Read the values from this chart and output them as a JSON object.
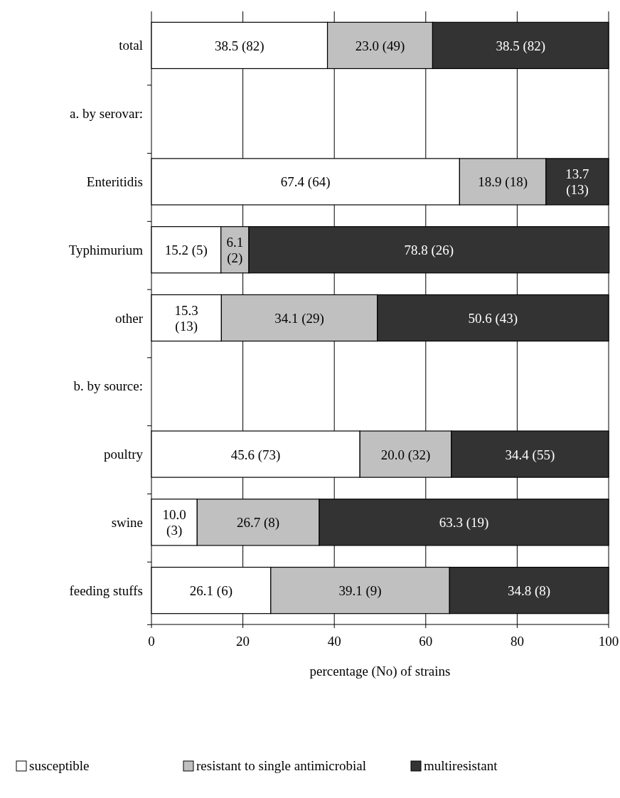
{
  "chart_data": {
    "type": "bar",
    "orientation": "horizontal",
    "stacked": true,
    "xlabel": "percentage (No) of strains",
    "categories": [
      "total",
      null,
      "Enteritidis",
      "Typhimurium",
      "other",
      null,
      "poultry",
      "swine",
      "feeding stuffs"
    ],
    "annotations": [
      "a. by serovar:",
      "b. by source:"
    ],
    "series": [
      {
        "name": "susceptible",
        "color": "#ffffff",
        "values": [
          38.5,
          null,
          67.4,
          15.2,
          15.3,
          null,
          45.6,
          10.0,
          26.1
        ],
        "value_labels": [
          "38.5 (82)",
          null,
          "67.4 (64)",
          "15.2 (5)",
          "15.3 (13)",
          null,
          "45.6 (73)",
          "10.0 (3)",
          "26.1 (6)"
        ]
      },
      {
        "name": "resistant to single antimicrobial",
        "color": "#c0c0c0",
        "values": [
          23.0,
          null,
          18.9,
          6.1,
          34.1,
          null,
          20.0,
          26.7,
          39.1
        ],
        "value_labels": [
          "23.0 (49)",
          null,
          "18.9 (18)",
          "6.1 (2)",
          "34.1 (29)",
          null,
          "20.0 (32)",
          "26.7 (8)",
          "39.1 (9)"
        ]
      },
      {
        "name": "multiresistant",
        "color": "#333333",
        "values": [
          38.5,
          null,
          13.7,
          78.8,
          50.6,
          null,
          34.4,
          63.3,
          34.8
        ],
        "value_labels": [
          "38.5 (82)",
          null,
          "13.7 (13)",
          "78.8 (26)",
          "50.6 (43)",
          null,
          "34.4 (55)",
          "63.3 (19)",
          "34.8 (8)"
        ]
      }
    ],
    "xlim": [
      0,
      100
    ],
    "xticks": [
      0,
      20,
      40,
      60,
      80,
      100
    ],
    "grid": "x",
    "legend": "bottom"
  }
}
